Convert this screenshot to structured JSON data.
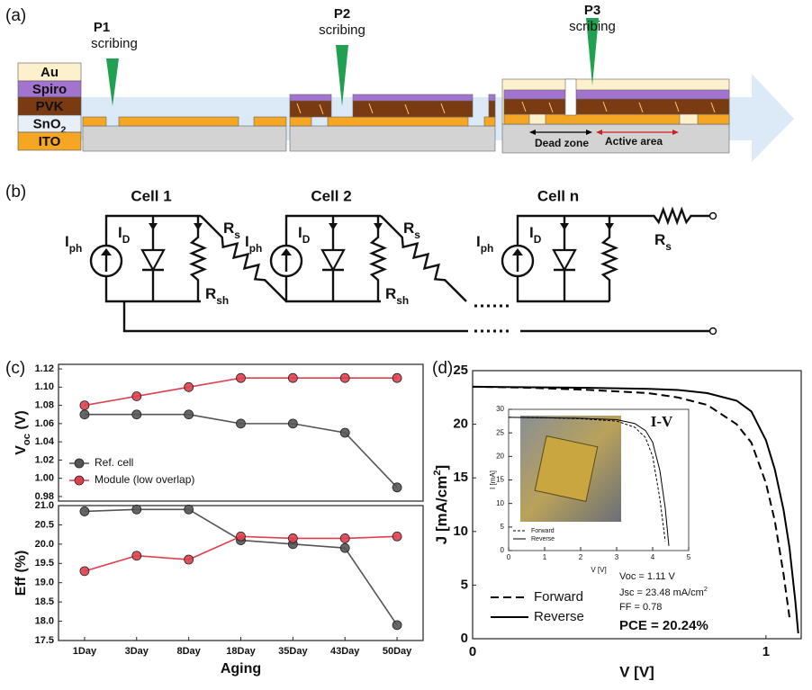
{
  "diagram_a": {
    "label": "(a)",
    "layers": [
      [
        {
          "text": "Au"
        }
      ],
      [
        {
          "text": "Spiro"
        }
      ],
      [
        {
          "text": "PVK"
        }
      ],
      [
        {
          "text": "SnO"
        },
        {
          "sub": "2"
        }
      ],
      [
        {
          "text": "ITO"
        }
      ]
    ],
    "scribes": [
      {
        "name": "P1",
        "action": "scribing"
      },
      {
        "name": "P2",
        "action": "scribing"
      },
      {
        "name": "P3",
        "action": "scribing"
      }
    ],
    "dead_zone": "Dead zone",
    "active_area": "Active area"
  },
  "diagram_b": {
    "label": "(b)",
    "cells": [
      {
        "name": "Cell 1",
        "source": [
          {
            "text": "I"
          },
          {
            "sub": "ph"
          }
        ],
        "diode": [
          {
            "text": "I"
          },
          {
            "sub": "D"
          }
        ],
        "series": [
          {
            "text": "R"
          },
          {
            "sub": "s"
          }
        ],
        "shunt": [
          {
            "text": "R"
          },
          {
            "sub": "sh"
          }
        ]
      },
      {
        "name": "Cell 2",
        "source": [
          {
            "text": "I"
          },
          {
            "sub": "ph"
          }
        ],
        "diode": [
          {
            "text": "I"
          },
          {
            "sub": "D"
          }
        ],
        "series": [
          {
            "text": "R"
          },
          {
            "sub": "s"
          }
        ],
        "shunt": [
          {
            "text": "R"
          },
          {
            "sub": "sh"
          }
        ]
      },
      {
        "name": "Cell n",
        "source": [
          {
            "text": "I"
          },
          {
            "sub": "ph"
          }
        ],
        "diode": [
          {
            "text": "I"
          },
          {
            "sub": "D"
          }
        ],
        "series": [
          {
            "text": "R"
          },
          {
            "sub": "s"
          }
        ]
      }
    ]
  },
  "chart_data": [
    {
      "type": "line",
      "panel_label": "(c)",
      "ylabel": [
        {
          "text": "V"
        },
        {
          "sub": "oc"
        },
        {
          "text": " (V)"
        }
      ],
      "ylim": [
        0.975,
        1.125
      ],
      "yticks": [
        0.98,
        {
          "value": 1,
          "label": "1.00"
        },
        1.02,
        1.04,
        1.06,
        1.08,
        {
          "value": 1.1,
          "label": "1.10"
        },
        1.12
      ],
      "legend": "lower left",
      "series": [
        {
          "name": "Ref. cell",
          "color": "#555555",
          "marker": "circle",
          "values": [
            1.07,
            1.07,
            1.07,
            1.06,
            1.06,
            1.05,
            0.99
          ]
        },
        {
          "name": "Module (low overlap)",
          "color": "#e0404e",
          "marker": "circle",
          "values": [
            1.08,
            1.09,
            1.1,
            1.11,
            1.11,
            1.11,
            1.11
          ]
        }
      ]
    },
    {
      "type": "line",
      "ylabel": [
        {
          "text": "Eff (%)"
        }
      ],
      "xlabel": "Aging",
      "categories": [
        "1Day",
        "3Day",
        "8Day",
        "18Day",
        "35Day",
        "43Day",
        "50Day"
      ],
      "ylim": [
        17.5,
        21.0
      ],
      "yticks": [
        17.5,
        {
          "value": 18,
          "label": "18.0"
        },
        18.5,
        {
          "value": 19,
          "label": "19.0"
        },
        19.5,
        {
          "value": 20,
          "label": "20.0"
        },
        20.5,
        {
          "value": 21,
          "label": "21.0"
        }
      ],
      "series": [
        {
          "color": "#555555",
          "marker": "circle",
          "values": [
            20.85,
            20.9,
            20.9,
            20.1,
            20.0,
            19.9,
            17.9
          ]
        },
        {
          "color": "#e0404e",
          "marker": "circle",
          "values": [
            19.3,
            19.7,
            19.6,
            20.2,
            20.15,
            20.15,
            20.2
          ]
        }
      ]
    },
    {
      "type": "line",
      "panel_label": "(d)",
      "ylabel": [
        {
          "text": "J [mA/cm"
        },
        {
          "sup": "2"
        },
        {
          "text": "]"
        }
      ],
      "xlabel": "V [V]",
      "x": [
        0,
        0.2,
        0.4,
        0.6,
        0.7,
        0.8,
        0.9,
        0.95,
        1.0,
        1.03,
        1.06,
        1.08,
        1.1,
        1.11
      ],
      "xlim": [
        0,
        1.12
      ],
      "xticks": [
        0,
        1
      ],
      "ylim": [
        0,
        25
      ],
      "yticks": [
        0,
        5,
        10,
        15,
        20,
        25
      ],
      "legend": "lower left",
      "series": [
        {
          "name": "Forward",
          "color": "#000000",
          "dash": true,
          "values": [
            23.5,
            23.4,
            23.2,
            22.9,
            22.5,
            21.8,
            20.0,
            18.3,
            14.5,
            11.0,
            6.0,
            2.0,
            null,
            null
          ]
        },
        {
          "name": "Reverse",
          "color": "#000000",
          "values": [
            23.5,
            23.45,
            23.4,
            23.3,
            23.2,
            22.9,
            22.2,
            21.2,
            18.5,
            15.8,
            12.0,
            8.5,
            3.5,
            0.5
          ]
        }
      ],
      "annotations": [
        [
          {
            "text": "Voc = 1.11 V"
          }
        ],
        [
          {
            "text": "Jsc = 23.48 mA/cm"
          },
          {
            "sup": "2"
          }
        ],
        [
          {
            "text": "FF = 0.78"
          }
        ],
        [
          {
            "text": "PCE = 20.24%"
          }
        ]
      ]
    },
    {
      "type": "line",
      "title": "I-V",
      "ylabel": [
        {
          "text": "I [mA]"
        }
      ],
      "xlabel": "V [V]",
      "x": [
        0,
        1,
        2,
        3,
        3.5,
        3.8,
        4.0,
        4.2,
        4.35,
        4.45
      ],
      "xlim": [
        0,
        5
      ],
      "xticks": [
        0,
        1,
        2,
        3,
        4,
        5
      ],
      "ylim": [
        0,
        30
      ],
      "yticks": [
        0,
        5,
        10,
        15,
        20,
        25,
        30
      ],
      "legend": "lower left",
      "series": [
        {
          "name": "Forward",
          "color": "#000000",
          "dash": true,
          "values": [
            28.3,
            28.2,
            28.0,
            27.5,
            26.2,
            24.0,
            20.0,
            11.0,
            2.0,
            null
          ]
        },
        {
          "name": "Reverse",
          "color": "#000000",
          "values": [
            28.3,
            28.2,
            28.1,
            27.8,
            27.0,
            25.5,
            23.0,
            17.0,
            9.0,
            1.0
          ]
        }
      ]
    }
  ]
}
